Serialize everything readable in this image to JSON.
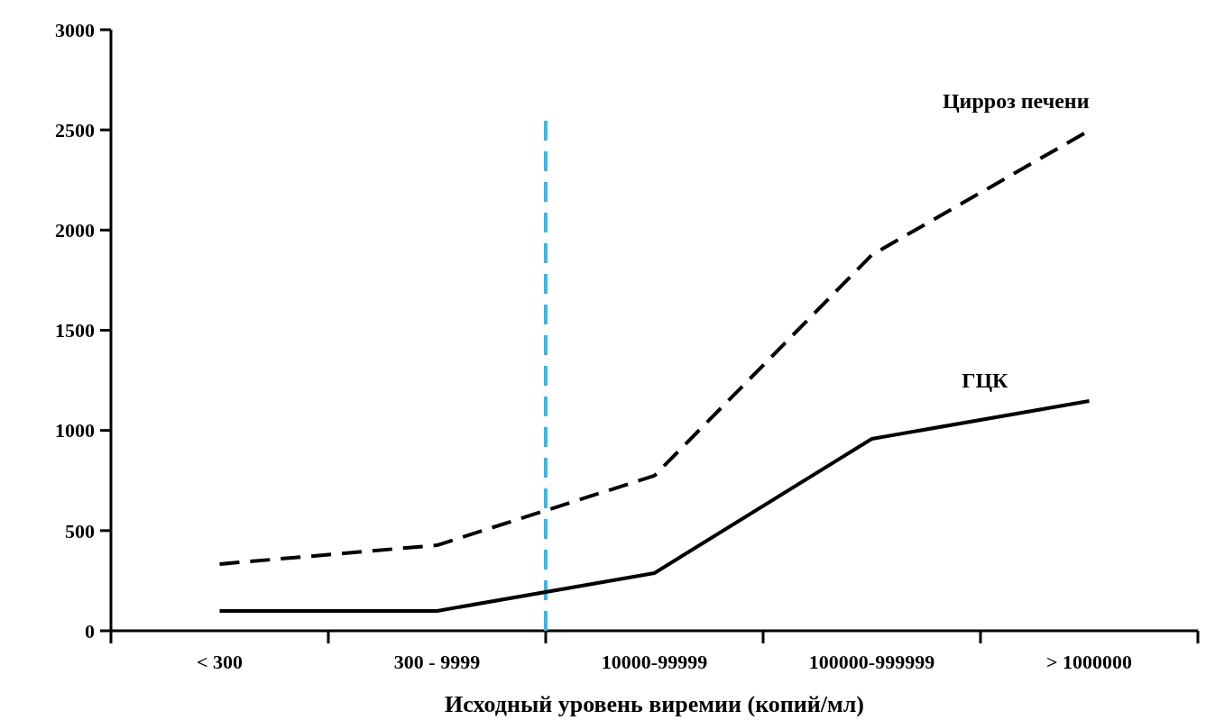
{
  "chart_data": {
    "type": "line",
    "xlabel": "Исходный уровень виремии (копий/мл)",
    "categories": [
      "< 300",
      "300 - 9999",
      "10000-99999",
      "100000-999999",
      "> 1000000"
    ],
    "series": [
      {
        "name": "Цирроз печени",
        "color": "#000000",
        "line_style": "dashed",
        "values": [
          333,
          427,
          774,
          1876,
          2497
        ]
      },
      {
        "name": "ГЦК",
        "color": "#000000",
        "line_style": "solid",
        "values": [
          99,
          99,
          288,
          958,
          1147
        ]
      }
    ],
    "ylim": [
      0,
      3000
    ],
    "yticks": [
      0,
      500,
      1000,
      1500,
      2000,
      2500,
      3000
    ],
    "grid": false,
    "legend": false,
    "marker": "none"
  }
}
